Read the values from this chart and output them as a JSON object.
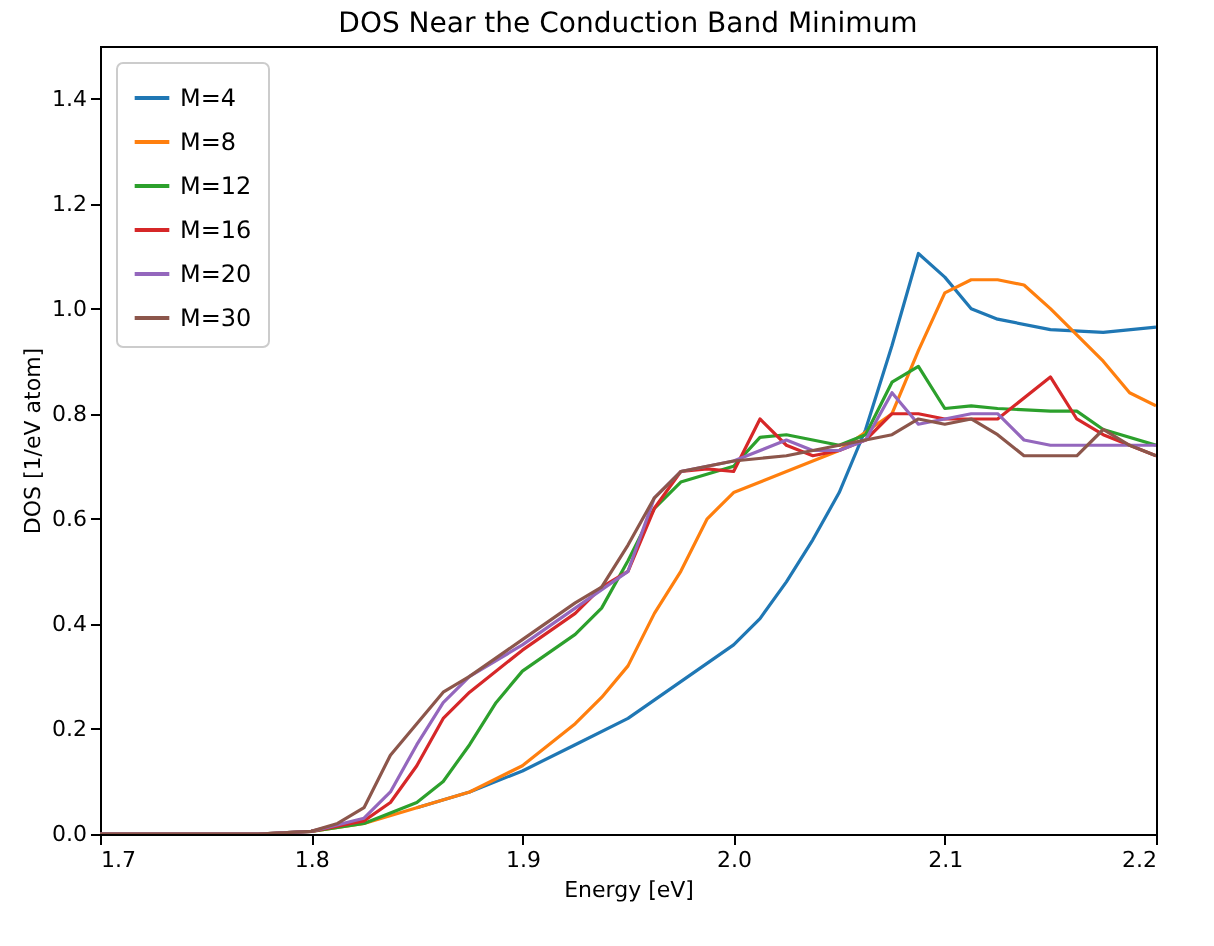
{
  "chart_data": {
    "type": "line",
    "title": "DOS Near the Conduction Band Minimum",
    "xlabel": "Energy [eV]",
    "ylabel": "DOS [1/eV atom]",
    "xlim": [
      1.7,
      2.2
    ],
    "ylim": [
      0,
      1.5
    ],
    "xticks": [
      {
        "value": 1.7,
        "label": "1.7"
      },
      {
        "value": 1.8,
        "label": "1.8"
      },
      {
        "value": 1.9,
        "label": "1.9"
      },
      {
        "value": 2.0,
        "label": "2.0"
      },
      {
        "value": 2.1,
        "label": "2.1"
      },
      {
        "value": 2.2,
        "label": "2.2"
      }
    ],
    "yticks": [
      {
        "value": 0,
        "label": "0.0"
      },
      {
        "value": 0.2,
        "label": "0.2"
      },
      {
        "value": 0.4,
        "label": "0.4"
      },
      {
        "value": 0.6,
        "label": "0.6"
      },
      {
        "value": 0.8,
        "label": "0.8"
      },
      {
        "value": 1.0,
        "label": "1.0"
      },
      {
        "value": 1.2,
        "label": "1.2"
      },
      {
        "value": 1.4,
        "label": "1.4"
      }
    ],
    "legend": "top left",
    "grid": false,
    "line_style": "solid",
    "series": [
      {
        "name": "M=4",
        "color": "#1f77b4",
        "x": [
          1.85,
          1.875,
          1.9,
          1.925,
          1.95,
          1.975,
          2.0,
          2.0125,
          2.025,
          2.0375,
          2.05,
          2.0625,
          2.075,
          2.0875,
          2.1,
          2.1125,
          2.125,
          2.15,
          2.175,
          2.2
        ],
        "values": [
          0.05,
          0.08,
          0.12,
          0.17,
          0.22,
          0.29,
          0.36,
          0.41,
          0.48,
          0.56,
          0.65,
          0.77,
          0.93,
          1.105,
          1.06,
          1.0,
          0.98,
          0.96,
          0.955,
          0.965
        ]
      },
      {
        "name": "M=8",
        "color": "#ff7f0e",
        "x": [
          1.8,
          1.825,
          1.85,
          1.875,
          1.9,
          1.9125,
          1.925,
          1.9375,
          1.95,
          1.9625,
          1.975,
          1.9875,
          2.0,
          2.025,
          2.05,
          2.075,
          2.0875,
          2.1,
          2.1125,
          2.125,
          2.1375,
          2.15,
          2.175,
          2.1875,
          2.2
        ],
        "values": [
          0.005,
          0.02,
          0.05,
          0.08,
          0.13,
          0.17,
          0.21,
          0.26,
          0.32,
          0.42,
          0.5,
          0.6,
          0.65,
          0.69,
          0.73,
          0.8,
          0.92,
          1.03,
          1.055,
          1.055,
          1.045,
          1.0,
          0.9,
          0.84,
          0.815
        ]
      },
      {
        "name": "M=12",
        "color": "#2ca02c",
        "x": [
          1.7,
          1.775,
          1.8,
          1.825,
          1.85,
          1.8625,
          1.875,
          1.8875,
          1.9,
          1.925,
          1.9375,
          1.95,
          1.9625,
          1.975,
          2.0,
          2.0125,
          2.025,
          2.0375,
          2.05,
          2.0625,
          2.075,
          2.0875,
          2.1,
          2.1125,
          2.125,
          2.15,
          2.1625,
          2.175,
          2.2
        ],
        "values": [
          0,
          0,
          0.005,
          0.02,
          0.06,
          0.1,
          0.17,
          0.25,
          0.31,
          0.38,
          0.43,
          0.52,
          0.62,
          0.67,
          0.7,
          0.755,
          0.76,
          0.75,
          0.74,
          0.76,
          0.86,
          0.89,
          0.81,
          0.815,
          0.81,
          0.805,
          0.805,
          0.77,
          0.74
        ]
      },
      {
        "name": "M=16",
        "color": "#d62728",
        "x": [
          1.7,
          1.775,
          1.8,
          1.825,
          1.8375,
          1.85,
          1.8625,
          1.875,
          1.9,
          1.925,
          1.9375,
          1.95,
          1.9625,
          1.975,
          1.9875,
          2.0,
          2.0125,
          2.025,
          2.0375,
          2.05,
          2.0625,
          2.075,
          2.0875,
          2.1,
          2.125,
          2.15,
          2.1625,
          2.175,
          2.2
        ],
        "values": [
          0,
          0,
          0.005,
          0.025,
          0.06,
          0.13,
          0.22,
          0.27,
          0.35,
          0.42,
          0.47,
          0.5,
          0.62,
          0.69,
          0.695,
          0.69,
          0.79,
          0.74,
          0.72,
          0.73,
          0.75,
          0.8,
          0.8,
          0.79,
          0.79,
          0.87,
          0.79,
          0.76,
          0.72
        ]
      },
      {
        "name": "M=20",
        "color": "#9467bd",
        "x": [
          1.7,
          1.775,
          1.8,
          1.825,
          1.8375,
          1.85,
          1.8625,
          1.875,
          1.9,
          1.925,
          1.95,
          1.9625,
          1.975,
          2.0,
          2.025,
          2.0375,
          2.05,
          2.0625,
          2.075,
          2.0875,
          2.1,
          2.1125,
          2.125,
          2.1375,
          2.15,
          2.175,
          2.2
        ],
        "values": [
          0,
          0,
          0.005,
          0.03,
          0.08,
          0.17,
          0.25,
          0.3,
          0.36,
          0.43,
          0.5,
          0.64,
          0.69,
          0.71,
          0.75,
          0.73,
          0.73,
          0.75,
          0.84,
          0.78,
          0.79,
          0.8,
          0.8,
          0.75,
          0.74,
          0.74,
          0.74
        ]
      },
      {
        "name": "M=30",
        "color": "#8c564b",
        "x": [
          1.7,
          1.775,
          1.8,
          1.8125,
          1.825,
          1.8375,
          1.85,
          1.8625,
          1.875,
          1.9,
          1.925,
          1.9375,
          1.95,
          1.9625,
          1.975,
          2.0,
          2.025,
          2.05,
          2.0625,
          2.075,
          2.0875,
          2.1,
          2.1125,
          2.125,
          2.1375,
          2.15,
          2.1625,
          2.175,
          2.1875,
          2.2
        ],
        "values": [
          0,
          0,
          0.005,
          0.02,
          0.05,
          0.15,
          0.21,
          0.27,
          0.3,
          0.37,
          0.44,
          0.47,
          0.55,
          0.64,
          0.69,
          0.71,
          0.72,
          0.74,
          0.75,
          0.76,
          0.79,
          0.78,
          0.79,
          0.76,
          0.72,
          0.72,
          0.72,
          0.77,
          0.74,
          0.72
        ]
      }
    ]
  }
}
